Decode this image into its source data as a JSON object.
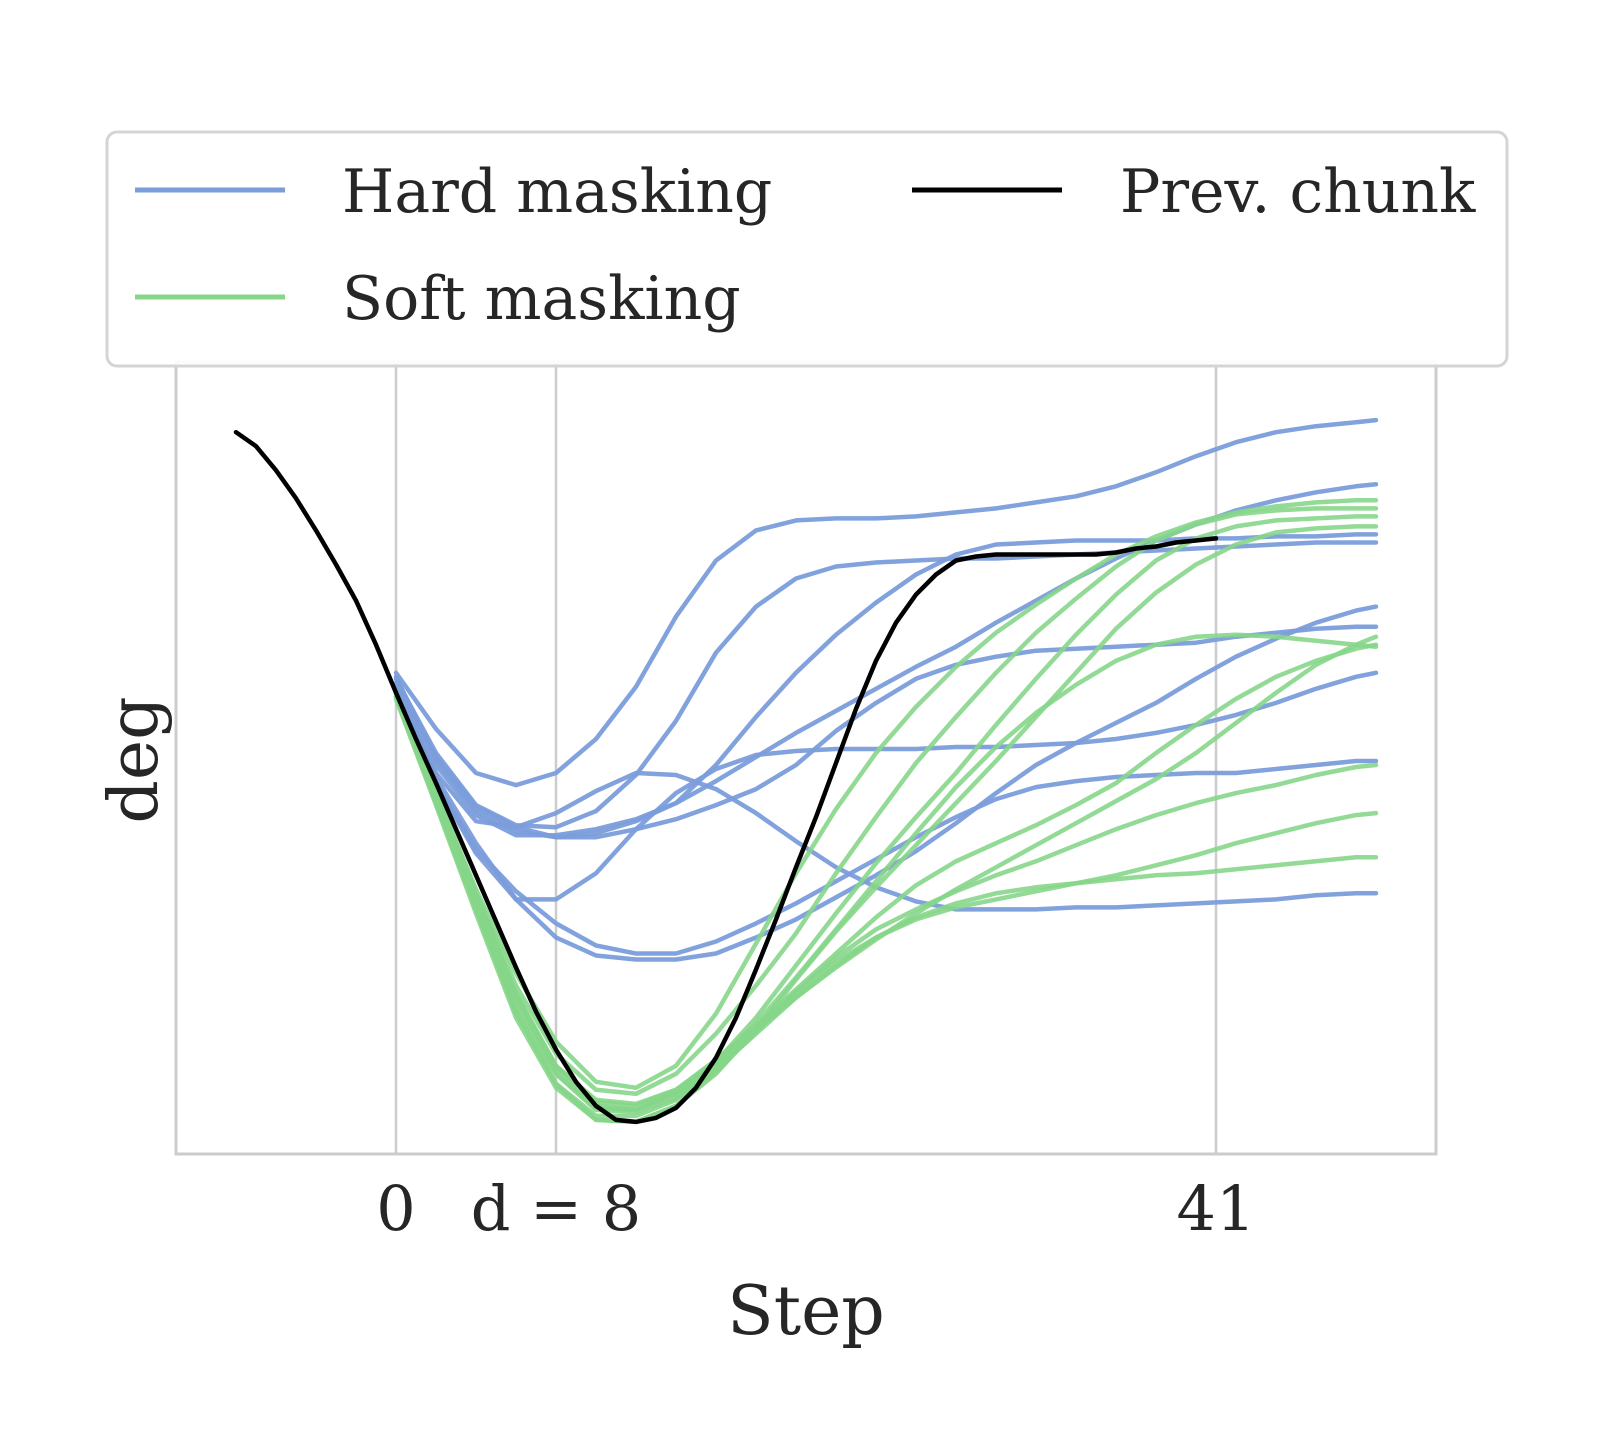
{
  "chart_data": {
    "type": "line",
    "title": "",
    "xlabel": "Step",
    "ylabel": "deg",
    "xlim": [
      -11,
      52
    ],
    "ylim": [
      -2.6,
      1.35
    ],
    "x_ticks": [
      {
        "value": 0,
        "label": "0"
      },
      {
        "value": 8,
        "label": "d = 8"
      },
      {
        "value": 41,
        "label": "41"
      }
    ],
    "y_ticks": [],
    "grid": {
      "x": true,
      "y": false
    },
    "legend": {
      "placement": "top",
      "entries": [
        {
          "label": "Hard masking",
          "color": "#7b9ddb"
        },
        {
          "label": "Prev. chunk",
          "color": "#000000"
        },
        {
          "label": "Soft masking",
          "color": "#86d689"
        }
      ]
    },
    "series": [
      {
        "name": "Prev. chunk",
        "color": "#000000",
        "x": [
          -8,
          -7,
          -6,
          -5,
          -4,
          -3,
          -2,
          -1,
          0,
          1,
          2,
          3,
          4,
          5,
          6,
          7,
          8,
          9,
          10,
          11,
          12,
          13,
          14,
          15,
          16,
          17,
          18,
          19,
          20,
          21,
          22,
          23,
          24,
          25,
          26,
          27,
          28,
          29,
          30,
          31,
          32,
          33,
          34,
          35,
          36,
          37,
          38,
          39,
          40,
          41
        ],
        "y": [
          1.0,
          0.93,
          0.81,
          0.67,
          0.51,
          0.34,
          0.16,
          -0.06,
          -0.3,
          -0.53,
          -0.75,
          -0.98,
          -1.21,
          -1.44,
          -1.67,
          -1.89,
          -2.08,
          -2.24,
          -2.36,
          -2.43,
          -2.44,
          -2.42,
          -2.37,
          -2.27,
          -2.12,
          -1.92,
          -1.68,
          -1.43,
          -1.17,
          -0.92,
          -0.65,
          -0.38,
          -0.14,
          0.05,
          0.19,
          0.29,
          0.36,
          0.38,
          0.39,
          0.39,
          0.39,
          0.39,
          0.39,
          0.39,
          0.4,
          0.42,
          0.43,
          0.45,
          0.46,
          0.47
        ]
      }
    ],
    "hard_masking_rollouts_x": [
      0,
      2,
      4,
      6,
      8,
      10,
      12,
      14,
      16,
      18,
      20,
      22,
      24,
      26,
      28,
      30,
      32,
      34,
      36,
      38,
      40,
      42,
      44,
      46,
      48,
      49
    ],
    "hard_masking_rollouts_y": [
      [
        -0.2,
        -0.48,
        -0.7,
        -0.76,
        -0.7,
        -0.53,
        -0.27,
        0.08,
        0.36,
        0.51,
        0.56,
        0.57,
        0.57,
        0.58,
        0.6,
        0.62,
        0.65,
        0.68,
        0.73,
        0.8,
        0.88,
        0.95,
        1.0,
        1.03,
        1.05,
        1.06
      ],
      [
        -0.23,
        -0.6,
        -0.86,
        -0.96,
        -0.97,
        -0.89,
        -0.71,
        -0.44,
        -0.1,
        0.13,
        0.27,
        0.33,
        0.35,
        0.36,
        0.37,
        0.37,
        0.38,
        0.39,
        0.4,
        0.41,
        0.42,
        0.43,
        0.44,
        0.45,
        0.45,
        0.45
      ],
      [
        -0.22,
        -0.63,
        -0.89,
        -0.99,
        -1.02,
        -1.0,
        -0.94,
        -0.85,
        -0.66,
        -0.42,
        -0.2,
        -0.01,
        0.15,
        0.29,
        0.39,
        0.44,
        0.45,
        0.46,
        0.46,
        0.46,
        0.47,
        0.47,
        0.48,
        0.48,
        0.49,
        0.49
      ],
      [
        -0.25,
        -0.62,
        -0.87,
        -0.97,
        -1.02,
        -1.02,
        -0.98,
        -0.93,
        -0.86,
        -0.78,
        -0.66,
        -0.49,
        -0.35,
        -0.23,
        -0.16,
        -0.12,
        -0.09,
        -0.08,
        -0.07,
        -0.06,
        -0.05,
        -0.02,
        0.0,
        0.02,
        0.03,
        0.03
      ],
      [
        -0.28,
        -0.7,
        -0.94,
        -0.97,
        -0.9,
        -0.79,
        -0.7,
        -0.71,
        -0.78,
        -0.9,
        -1.04,
        -1.17,
        -1.27,
        -1.34,
        -1.38,
        -1.38,
        -1.38,
        -1.37,
        -1.37,
        -1.36,
        -1.35,
        -1.34,
        -1.33,
        -1.31,
        -1.3,
        -1.3
      ],
      [
        -0.28,
        -0.66,
        -0.91,
        -1.01,
        -1.01,
        -0.98,
        -0.93,
        -0.85,
        -0.74,
        -0.62,
        -0.5,
        -0.39,
        -0.28,
        -0.17,
        -0.07,
        0.05,
        0.16,
        0.27,
        0.37,
        0.46,
        0.54,
        0.61,
        0.66,
        0.7,
        0.73,
        0.74
      ],
      [
        -0.3,
        -0.72,
        -1.05,
        -1.33,
        -1.52,
        -1.61,
        -1.63,
        -1.63,
        -1.6,
        -1.52,
        -1.43,
        -1.32,
        -1.21,
        -1.09,
        -0.95,
        -0.8,
        -0.66,
        -0.55,
        -0.45,
        -0.35,
        -0.23,
        -0.12,
        -0.03,
        0.05,
        0.11,
        0.13
      ],
      [
        -0.3,
        -0.75,
        -1.08,
        -1.29,
        -1.45,
        -1.56,
        -1.6,
        -1.6,
        -1.54,
        -1.45,
        -1.35,
        -1.24,
        -1.13,
        -1.02,
        -0.92,
        -0.83,
        -0.77,
        -0.74,
        -0.72,
        -0.71,
        -0.7,
        -0.7,
        -0.68,
        -0.66,
        -0.64,
        -0.64
      ],
      [
        -0.3,
        -0.75,
        -1.1,
        -1.33,
        -1.33,
        -1.2,
        -0.98,
        -0.8,
        -0.68,
        -0.61,
        -0.59,
        -0.58,
        -0.58,
        -0.58,
        -0.57,
        -0.57,
        -0.56,
        -0.55,
        -0.53,
        -0.5,
        -0.46,
        -0.41,
        -0.35,
        -0.28,
        -0.22,
        -0.2
      ]
    ],
    "soft_masking_rollouts_x": [
      0,
      2,
      4,
      6,
      8,
      10,
      12,
      14,
      16,
      18,
      20,
      22,
      24,
      26,
      28,
      30,
      32,
      34,
      36,
      38,
      40,
      42,
      44,
      46,
      48,
      49
    ],
    "soft_masking_rollouts_y": [
      [
        -0.3,
        -0.8,
        -1.28,
        -1.7,
        -2.04,
        -2.24,
        -2.27,
        -2.16,
        -1.9,
        -1.55,
        -1.2,
        -0.88,
        -0.6,
        -0.37,
        -0.17,
        0.0,
        0.14,
        0.27,
        0.39,
        0.48,
        0.55,
        0.6,
        0.63,
        0.65,
        0.66,
        0.66
      ],
      [
        -0.3,
        -0.8,
        -1.3,
        -1.76,
        -2.1,
        -2.28,
        -2.3,
        -2.2,
        -2.0,
        -1.76,
        -1.5,
        -1.2,
        -0.92,
        -0.65,
        -0.42,
        -0.2,
        0.0,
        0.17,
        0.33,
        0.46,
        0.54,
        0.59,
        0.61,
        0.62,
        0.62,
        0.62
      ],
      [
        -0.32,
        -0.82,
        -1.32,
        -1.8,
        -2.17,
        -2.36,
        -2.38,
        -2.3,
        -2.14,
        -1.92,
        -1.66,
        -1.4,
        -1.15,
        -0.92,
        -0.7,
        -0.46,
        -0.23,
        -0.01,
        0.19,
        0.36,
        0.47,
        0.53,
        0.56,
        0.57,
        0.58,
        0.58
      ],
      [
        -0.33,
        -0.86,
        -1.4,
        -1.92,
        -2.27,
        -2.43,
        -2.44,
        -2.36,
        -2.2,
        -1.98,
        -1.73,
        -1.49,
        -1.27,
        -1.06,
        -0.85,
        -0.64,
        -0.42,
        -0.2,
        0.02,
        0.2,
        0.34,
        0.44,
        0.5,
        0.52,
        0.53,
        0.53
      ],
      [
        -0.3,
        -0.82,
        -1.34,
        -1.82,
        -2.16,
        -2.33,
        -2.35,
        -2.28,
        -2.14,
        -1.95,
        -1.72,
        -1.48,
        -1.24,
        -1.0,
        -0.77,
        -0.57,
        -0.4,
        -0.26,
        -0.14,
        -0.06,
        -0.02,
        -0.01,
        -0.02,
        -0.04,
        -0.06,
        -0.07
      ],
      [
        -0.32,
        -0.84,
        -1.36,
        -1.86,
        -2.2,
        -2.37,
        -2.38,
        -2.3,
        -2.15,
        -1.98,
        -1.82,
        -1.67,
        -1.53,
        -1.4,
        -1.28,
        -1.17,
        -1.06,
        -0.95,
        -0.84,
        -0.73,
        -0.6,
        -0.45,
        -0.3,
        -0.16,
        -0.06,
        -0.02
      ],
      [
        -0.3,
        -0.8,
        -1.3,
        -1.8,
        -2.16,
        -2.34,
        -2.36,
        -2.28,
        -2.13,
        -1.96,
        -1.78,
        -1.6,
        -1.42,
        -1.26,
        -1.14,
        -1.05,
        -0.96,
        -0.86,
        -0.75,
        -0.6,
        -0.46,
        -0.33,
        -0.22,
        -0.14,
        -0.08,
        -0.06
      ],
      [
        -0.32,
        -0.85,
        -1.38,
        -1.9,
        -2.25,
        -2.41,
        -2.41,
        -2.33,
        -2.17,
        -1.98,
        -1.79,
        -1.62,
        -1.48,
        -1.38,
        -1.29,
        -1.21,
        -1.14,
        -1.06,
        -0.98,
        -0.91,
        -0.85,
        -0.8,
        -0.76,
        -0.71,
        -0.67,
        -0.66
      ],
      [
        -0.3,
        -0.8,
        -1.3,
        -1.82,
        -2.2,
        -2.38,
        -2.39,
        -2.32,
        -2.18,
        -2.0,
        -1.82,
        -1.66,
        -1.52,
        -1.42,
        -1.35,
        -1.3,
        -1.27,
        -1.25,
        -1.23,
        -1.21,
        -1.2,
        -1.18,
        -1.16,
        -1.14,
        -1.12,
        -1.12
      ],
      [
        -0.32,
        -0.84,
        -1.36,
        -1.88,
        -2.25,
        -2.43,
        -2.44,
        -2.36,
        -2.19,
        -1.99,
        -1.8,
        -1.64,
        -1.52,
        -1.43,
        -1.37,
        -1.33,
        -1.29,
        -1.25,
        -1.21,
        -1.16,
        -1.11,
        -1.05,
        -1.0,
        -0.95,
        -0.91,
        -0.9
      ]
    ]
  }
}
